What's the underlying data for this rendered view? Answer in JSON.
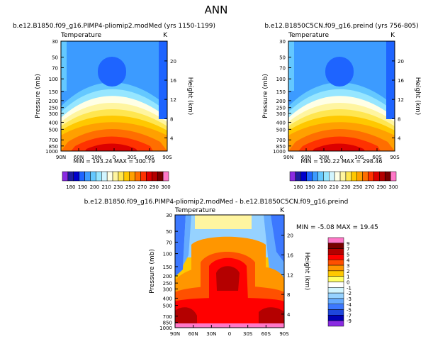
{
  "main_title": "ANN",
  "panels": [
    {
      "id": "p1",
      "title": "b.e12.B1850.f09_g16.PIMP4-pliomip2.modMed (yrs 1150-1199)",
      "left_label": "Temperature",
      "right_label": "K",
      "stats": "MIN = 193.24   MAX = 300.79",
      "ylabel": "Pressure (mb)",
      "y2label": "Height (km)",
      "xticks": [
        "90N",
        "60N",
        "30N",
        "0",
        "30S",
        "60S",
        "90S"
      ],
      "yticks": [
        "30",
        "50",
        "70",
        "100",
        "150",
        "200",
        "250",
        "300",
        "400",
        "500",
        "700",
        "850",
        "1000"
      ],
      "y2ticks": [
        "20",
        "16",
        "12",
        "8",
        "4"
      ]
    },
    {
      "id": "p2",
      "title": "b.e12.B1850C5CN.f09_g16.preind (yrs 756-805)",
      "left_label": "Temperature",
      "right_label": "K",
      "stats": "MIN = 190.22   MAX = 298.46",
      "ylabel": "Pressure (mb)",
      "y2label": "Height (km)",
      "xticks": [
        "90N",
        "60N",
        "30N",
        "0",
        "30S",
        "60S",
        "90S"
      ],
      "yticks": [
        "30",
        "50",
        "70",
        "100",
        "150",
        "200",
        "250",
        "300",
        "400",
        "500",
        "700",
        "850",
        "1000"
      ],
      "y2ticks": [
        "20",
        "16",
        "12",
        "8",
        "4"
      ]
    },
    {
      "id": "p3",
      "title": "b.e12.B1850.f09_g16.PIMP4-pliomip2.modMed - b.e12.B1850C5CN.f09_g16.preind",
      "left_label": "Temperature",
      "right_label": "K",
      "stats": "MIN = -5.08   MAX = 19.45",
      "ylabel": "Pressure (mb)",
      "y2label": "Height (km)",
      "xticks": [
        "90N",
        "60N",
        "30N",
        "0",
        "30S",
        "60S",
        "90S"
      ],
      "yticks": [
        "30",
        "50",
        "70",
        "100",
        "150",
        "200",
        "250",
        "300",
        "400",
        "500",
        "700",
        "850",
        "1000"
      ],
      "y2ticks": [
        "20",
        "16",
        "12",
        "8",
        "4"
      ]
    }
  ],
  "colorbar_abs": {
    "labels": [
      "180",
      "190",
      "200",
      "210",
      "230",
      "250",
      "270",
      "290",
      "300"
    ],
    "colors": [
      "#8a2be2",
      "#1e1ea0",
      "#0000cd",
      "#1e64ff",
      "#3c9bff",
      "#64c8ff",
      "#96e6ff",
      "#d2f5ff",
      "#ffffe6",
      "#fff5a0",
      "#ffe650",
      "#ffc800",
      "#ffa000",
      "#ff6e00",
      "#ff3200",
      "#dc0000",
      "#b40000",
      "#780000",
      "#ff78c8"
    ]
  },
  "colorbar_diff": {
    "labels": [
      "9",
      "7",
      "5",
      "4",
      "3",
      "2",
      "1",
      "0",
      "-1",
      "-2",
      "-3",
      "-4",
      "-5",
      "-7",
      "-9"
    ],
    "colors": [
      "#ff78c8",
      "#780000",
      "#b40000",
      "#ff0000",
      "#ff5000",
      "#ff9600",
      "#ffc800",
      "#ffff64",
      "#ffffff",
      "#d2f5ff",
      "#96d2ff",
      "#64aaff",
      "#3c78ff",
      "#1e46dc",
      "#0000b4",
      "#8a2be2"
    ]
  },
  "chart_data": [
    {
      "type": "heatmap",
      "title": "b.e12.B1850.f09_g16.PIMP4-pliomip2.modMed (yrs 1150-1199)",
      "variable": "Temperature",
      "units": "K",
      "x": [
        "90N",
        "60N",
        "30N",
        "0",
        "30S",
        "60S",
        "90S"
      ],
      "y": [
        30,
        50,
        70,
        100,
        150,
        200,
        250,
        300,
        400,
        500,
        700,
        850,
        1000
      ],
      "min": 193.24,
      "max": 300.79
    },
    {
      "type": "heatmap",
      "title": "b.e12.B1850C5CN.f09_g16.preind (yrs 756-805)",
      "variable": "Temperature",
      "units": "K",
      "x": [
        "90N",
        "60N",
        "30N",
        "0",
        "30S",
        "60S",
        "90S"
      ],
      "y": [
        30,
        50,
        70,
        100,
        150,
        200,
        250,
        300,
        400,
        500,
        700,
        850,
        1000
      ],
      "min": 190.22,
      "max": 298.46
    },
    {
      "type": "heatmap",
      "title": "b.e12.B1850.f09_g16.PIMP4-pliomip2.modMed - b.e12.B1850C5CN.f09_g16.preind",
      "variable": "Temperature",
      "units": "K",
      "x": [
        "90N",
        "60N",
        "30N",
        "0",
        "30S",
        "60S",
        "90S"
      ],
      "y": [
        30,
        50,
        70,
        100,
        150,
        200,
        250,
        300,
        400,
        500,
        700,
        850,
        1000
      ],
      "min": -5.08,
      "max": 19.45
    }
  ]
}
